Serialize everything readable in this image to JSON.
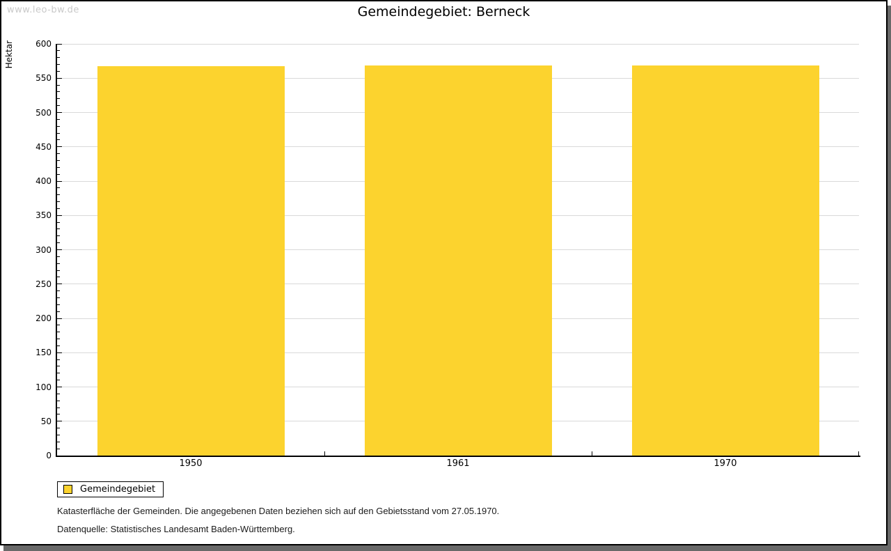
{
  "page": {
    "watermark": "www.leo-bw.de",
    "title": "Gemeindegebiet: Berneck"
  },
  "chart_data": {
    "type": "bar",
    "title": "Gemeindegebiet: Berneck",
    "xlabel": "",
    "ylabel": "Hektar",
    "categories": [
      "1950",
      "1961",
      "1970"
    ],
    "series": [
      {
        "name": "Gemeindegebiet",
        "values": [
          568,
          569,
          569
        ]
      }
    ],
    "ylim": [
      0,
      600
    ],
    "y_major_step": 50,
    "y_minor_step": 10,
    "grid": true,
    "legend_position": "bottom-left",
    "bar_color": "#FCD32E"
  },
  "legend": {
    "label": "Gemeindegebiet",
    "swatch_color": "#FCD32E"
  },
  "footnotes": {
    "line1": "Katasterfläche der Gemeinden. Die angegebenen Daten beziehen sich auf den Gebietsstand vom 27.05.1970.",
    "line2": "Datenquelle: Statistisches Landesamt Baden-Württemberg."
  },
  "colors": {
    "bar": "#FCD32E",
    "grid": "#d9d9d9",
    "axis": "#000000",
    "watermark": "#c9c9c9",
    "shadow": "#696969"
  }
}
